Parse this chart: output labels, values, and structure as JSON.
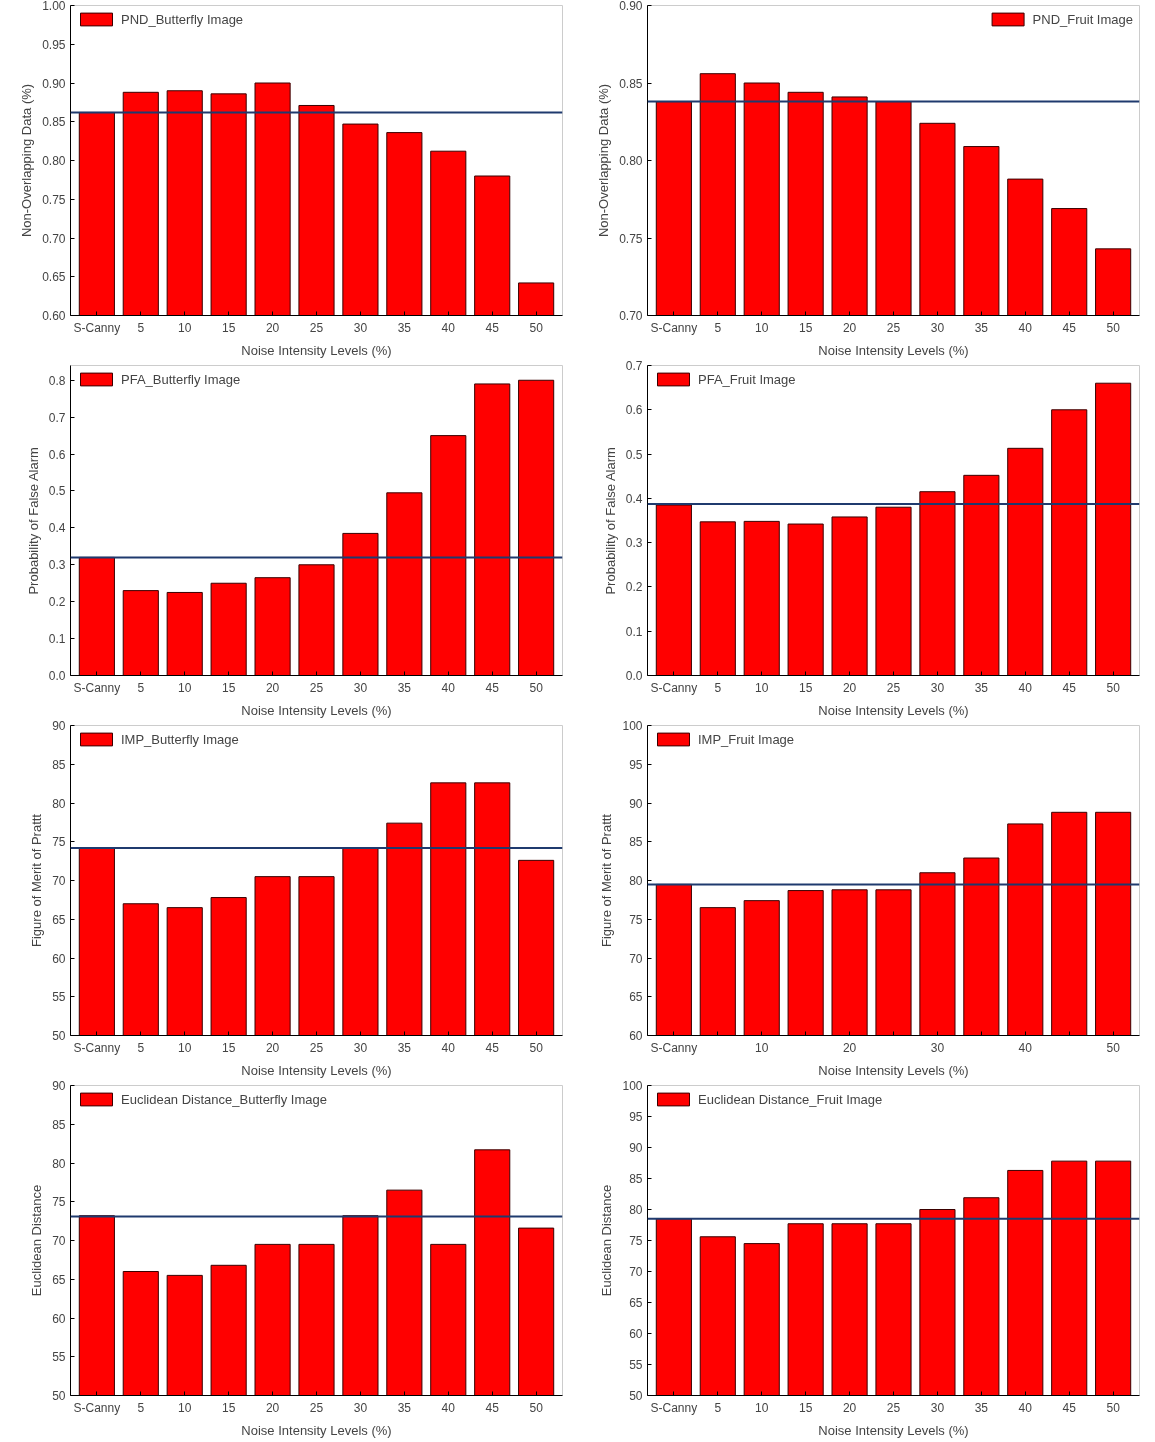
{
  "chart_data": [
    {
      "type": "bar",
      "categories": [
        "S-Canny",
        "5",
        "10",
        "15",
        "20",
        "25",
        "30",
        "35",
        "40",
        "45",
        "50"
      ],
      "xlabel": "Noise Intensity Levels (%)",
      "ylabel": "Non-Overlapping Data (%)",
      "legend": "top left",
      "grid": false,
      "series": [
        {
          "name": "PND_Butterfly Image",
          "color": "#ff0000",
          "values": [
            0.862,
            0.888,
            0.89,
            0.886,
            0.9,
            0.871,
            0.847,
            0.836,
            0.812,
            0.78,
            0.642
          ]
        }
      ],
      "ylim": [
        0.6,
        1.0
      ],
      "yticks": [
        {
          "value": 0.6,
          "label": "0.60"
        },
        0.65,
        {
          "value": 0.7,
          "label": "0.70"
        },
        0.75,
        {
          "value": 0.8,
          "label": "0.80"
        },
        0.85,
        {
          "value": 0.9,
          "label": "0.90"
        },
        0.95,
        {
          "value": 1.0,
          "label": "1.00"
        }
      ],
      "ref_lines": [
        {
          "axis": "y",
          "value": 0.862,
          "color": "#1f3a6e"
        }
      ]
    },
    {
      "type": "bar",
      "categories": [
        "S-Canny",
        "5",
        "10",
        "15",
        "20",
        "25",
        "30",
        "35",
        "40",
        "45",
        "50"
      ],
      "xlabel": "Noise Intensity Levels (%)",
      "ylabel": "Non-Overlapping Data (%)",
      "legend": "top right",
      "grid": false,
      "series": [
        {
          "name": "PND_Fruit Image",
          "color": "#ff0000",
          "values": [
            0.838,
            0.856,
            0.85,
            0.844,
            0.841,
            0.838,
            0.824,
            0.809,
            0.788,
            0.769,
            0.743
          ]
        }
      ],
      "ylim": [
        0.7,
        0.9
      ],
      "yticks": [
        {
          "value": 0.7,
          "label": "0.70"
        },
        0.75,
        {
          "value": 0.8,
          "label": "0.80"
        },
        0.85,
        {
          "value": 0.9,
          "label": "0.90"
        }
      ],
      "ref_lines": [
        {
          "axis": "y",
          "value": 0.838,
          "color": "#1f3a6e"
        }
      ]
    },
    {
      "type": "bar",
      "categories": [
        "S-Canny",
        "5",
        "10",
        "15",
        "20",
        "25",
        "30",
        "35",
        "40",
        "45",
        "50"
      ],
      "xlabel": "Noise Intensity Levels (%)",
      "ylabel": "Probability of False Alarm",
      "legend": "top left",
      "grid": false,
      "series": [
        {
          "name": "PFA_Butterfly Image",
          "color": "#ff0000",
          "values": [
            0.32,
            0.23,
            0.225,
            0.25,
            0.265,
            0.3,
            0.385,
            0.495,
            0.65,
            0.79,
            0.8
          ]
        }
      ],
      "ylim": [
        0.0,
        0.84
      ],
      "yticks": [
        {
          "value": 0,
          "label": "0.0"
        },
        0.1,
        0.2,
        0.3,
        0.4,
        0.5,
        0.6,
        0.7,
        0.8
      ],
      "ref_lines": [
        {
          "axis": "y",
          "value": 0.32,
          "color": "#1f3a6e"
        }
      ]
    },
    {
      "type": "bar",
      "categories": [
        "S-Canny",
        "5",
        "10",
        "15",
        "20",
        "25",
        "30",
        "35",
        "40",
        "45",
        "50"
      ],
      "xlabel": "Noise Intensity Levels (%)",
      "ylabel": "Probability of False Alarm",
      "legend": "top left",
      "grid": false,
      "series": [
        {
          "name": "PFA_Fruit Image",
          "color": "#ff0000",
          "values": [
            0.385,
            0.347,
            0.348,
            0.342,
            0.358,
            0.38,
            0.415,
            0.452,
            0.513,
            0.6,
            0.66
          ]
        }
      ],
      "ylim": [
        0.0,
        0.7
      ],
      "yticks": [
        {
          "value": 0,
          "label": "0.0"
        },
        0.1,
        0.2,
        0.3,
        0.4,
        0.5,
        0.6,
        0.7
      ],
      "ref_lines": [
        {
          "axis": "y",
          "value": 0.387,
          "color": "#1f3a6e"
        }
      ]
    },
    {
      "type": "bar",
      "categories": [
        "S-Canny",
        "5",
        "10",
        "15",
        "20",
        "25",
        "30",
        "35",
        "40",
        "45",
        "50"
      ],
      "xlabel": "Noise Intensity Levels (%)",
      "ylabel": "Figure of Merit of Prattt",
      "legend": "top left",
      "grid": false,
      "series": [
        {
          "name": "IMP_Butterfly Image",
          "color": "#ff0000",
          "values": [
            74.2,
            67.0,
            66.5,
            67.8,
            70.5,
            70.5,
            74.2,
            77.4,
            82.6,
            82.6,
            72.6
          ]
        }
      ],
      "ylim": [
        50,
        90
      ],
      "yticks": [
        50,
        55,
        60,
        65,
        70,
        75,
        80,
        85,
        90
      ],
      "ref_lines": [
        {
          "axis": "y",
          "value": 74.2,
          "color": "#1f3a6e"
        }
      ]
    },
    {
      "type": "bar",
      "categories": [
        "S-Canny",
        null,
        "10",
        null,
        "20",
        null,
        "30",
        null,
        "40",
        null,
        "50"
      ],
      "xlabel": "Noise Intensity Levels (%)",
      "ylabel": "Figure of Merit of Prattt",
      "legend": "top left",
      "grid": false,
      "series": [
        {
          "name": "IMP_Fruit Image",
          "color": "#ff0000",
          "values": [
            79.5,
            76.5,
            77.4,
            78.7,
            78.8,
            78.8,
            81.0,
            82.9,
            87.3,
            88.8,
            88.8
          ]
        }
      ],
      "ylim": [
        60,
        100
      ],
      "yticks": [
        60,
        65,
        70,
        75,
        80,
        85,
        90,
        95,
        100
      ],
      "ref_lines": [
        {
          "axis": "y",
          "value": 79.5,
          "color": "#1f3a6e"
        }
      ]
    },
    {
      "type": "bar",
      "categories": [
        "S-Canny",
        "5",
        "10",
        "15",
        "20",
        "25",
        "30",
        "35",
        "40",
        "45",
        "50"
      ],
      "xlabel": "Noise Intensity Levels (%)",
      "ylabel": "Euclidean Distance",
      "legend": "top left",
      "grid": false,
      "series": [
        {
          "name": "Euclidean Distance_Butterfly Image",
          "color": "#ff0000",
          "values": [
            73.2,
            66.0,
            65.5,
            66.8,
            69.5,
            69.5,
            73.2,
            76.5,
            69.5,
            81.7,
            71.6
          ]
        }
      ],
      "ylim": [
        50,
        90
      ],
      "yticks": [
        50,
        55,
        60,
        65,
        70,
        75,
        80,
        85,
        90
      ],
      "ref_lines": [
        {
          "axis": "y",
          "value": 73.1,
          "color": "#1f3a6e"
        }
      ]
    },
    {
      "type": "bar",
      "categories": [
        "S-Canny",
        "5",
        "10",
        "15",
        "20",
        "25",
        "30",
        "35",
        "40",
        "45",
        "50"
      ],
      "xlabel": "Noise Intensity Levels (%)",
      "ylabel": "Euclidean Distance",
      "legend": "top left",
      "grid": false,
      "series": [
        {
          "name": "Euclidean Distance_Fruit Image",
          "color": "#ff0000",
          "values": [
            78.5,
            75.6,
            74.5,
            77.7,
            77.7,
            77.7,
            80.0,
            81.9,
            86.3,
            87.8,
            87.8
          ]
        }
      ],
      "ylim": [
        50,
        100
      ],
      "yticks": [
        50,
        55,
        60,
        65,
        70,
        75,
        80,
        85,
        90,
        95,
        100
      ],
      "ref_lines": [
        {
          "axis": "y",
          "value": 78.5,
          "color": "#1f3a6e"
        }
      ]
    }
  ]
}
